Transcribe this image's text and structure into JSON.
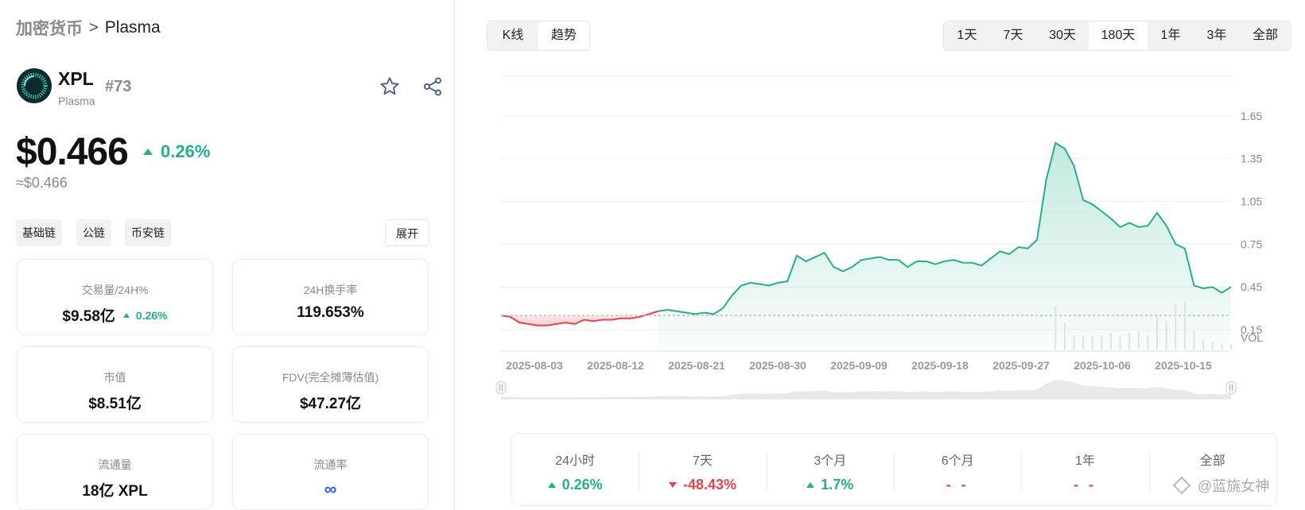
{
  "breadcrumb": {
    "root": "加密货币",
    "separator": ">",
    "current": "Plasma"
  },
  "coin": {
    "symbol": "XPL",
    "name": "Plasma",
    "rank": "#73",
    "favorite_icon": "star-icon",
    "share_icon": "share-icon"
  },
  "price": {
    "value": "$0.466",
    "change": "0.26%",
    "change_direction": "up",
    "approx": "≈$0.466"
  },
  "tags": [
    "基础链",
    "公链",
    "币安链"
  ],
  "expand_label": "展开",
  "stats": [
    {
      "label": "交易量/24H%",
      "value": "$9.58亿",
      "sub": "0.26%"
    },
    {
      "label": "24H换手率",
      "value": "119.653%"
    },
    {
      "label": "市值",
      "value": "$8.51亿"
    },
    {
      "label": "FDV(完全摊薄估值)",
      "value": "$47.27亿"
    },
    {
      "label": "流通量",
      "value": "18亿 XPL"
    },
    {
      "label": "流通率",
      "value": "∞"
    }
  ],
  "chart_modes": [
    {
      "label": "K线",
      "active": true
    },
    {
      "label": "趋势",
      "active": false
    }
  ],
  "ranges": [
    {
      "label": "1天",
      "active": false
    },
    {
      "label": "7天",
      "active": false
    },
    {
      "label": "30天",
      "active": false
    },
    {
      "label": "180天",
      "active": true
    },
    {
      "label": "1年",
      "active": false
    },
    {
      "label": "3年",
      "active": false
    },
    {
      "label": "全部",
      "active": false
    }
  ],
  "chart_data": {
    "type": "area",
    "ylabel": "",
    "y_ticks": [
      "1.65",
      "1.35",
      "1.05",
      "0.75",
      "0.45",
      "0.15"
    ],
    "ylim": [
      0.0,
      1.85
    ],
    "x_tick_labels": [
      "2025-08-03",
      "2025-08-12",
      "2025-08-21",
      "2025-08-30",
      "2025-09-09",
      "2025-09-18",
      "2025-09-27",
      "2025-10-06",
      "2025-10-15"
    ],
    "volume_label": "VOL",
    "baseline": 0.25,
    "colors": {
      "up": "#24ae8f",
      "down": "#e8414f",
      "up_fill": "#bfe9dc",
      "down_fill": "#f8c6cb"
    },
    "price_series": [
      0.25,
      0.24,
      0.2,
      0.19,
      0.18,
      0.18,
      0.19,
      0.2,
      0.19,
      0.22,
      0.21,
      0.22,
      0.22,
      0.23,
      0.23,
      0.24,
      0.26,
      0.28,
      0.29,
      0.28,
      0.27,
      0.26,
      0.27,
      0.26,
      0.3,
      0.39,
      0.46,
      0.48,
      0.47,
      0.46,
      0.48,
      0.49,
      0.67,
      0.63,
      0.66,
      0.69,
      0.59,
      0.56,
      0.59,
      0.64,
      0.65,
      0.66,
      0.64,
      0.64,
      0.59,
      0.63,
      0.63,
      0.61,
      0.63,
      0.64,
      0.62,
      0.62,
      0.6,
      0.65,
      0.7,
      0.68,
      0.73,
      0.72,
      0.78,
      1.2,
      1.46,
      1.42,
      1.3,
      1.06,
      1.03,
      0.98,
      0.93,
      0.87,
      0.9,
      0.87,
      0.88,
      0.97,
      0.88,
      0.75,
      0.72,
      0.46,
      0.44,
      0.45,
      0.41,
      0.45
    ],
    "volume_series": [
      0,
      0,
      0,
      0,
      0,
      0,
      0,
      0,
      0,
      0,
      0,
      0,
      0,
      0,
      0,
      0,
      0,
      0,
      0,
      0,
      0,
      0,
      0,
      0,
      0,
      0,
      0,
      0,
      0,
      0,
      0,
      0,
      0,
      0,
      0,
      0,
      0,
      0,
      0,
      0,
      0,
      0,
      0,
      0,
      0,
      0,
      0,
      0,
      0,
      0,
      0,
      0,
      0,
      0,
      0,
      0,
      0,
      0,
      0,
      0,
      0.9,
      0.55,
      0.3,
      0.3,
      0.3,
      0.3,
      0.35,
      0.3,
      0.35,
      0.4,
      0.3,
      0.7,
      0.6,
      0.95,
      1.0,
      0.4,
      0.2,
      0.15,
      0.12,
      0.12
    ]
  },
  "performance": [
    {
      "label": "24小时",
      "value": "0.26%",
      "direction": "up"
    },
    {
      "label": "7天",
      "value": "-48.43%",
      "direction": "down"
    },
    {
      "label": "3个月",
      "value": "1.7%",
      "direction": "up"
    },
    {
      "label": "6个月",
      "value": "- -",
      "direction": "none"
    },
    {
      "label": "1年",
      "value": "- -",
      "direction": "none"
    },
    {
      "label": "全部",
      "value": "",
      "direction": "none"
    }
  ],
  "watermark": "@蓝旐女神"
}
